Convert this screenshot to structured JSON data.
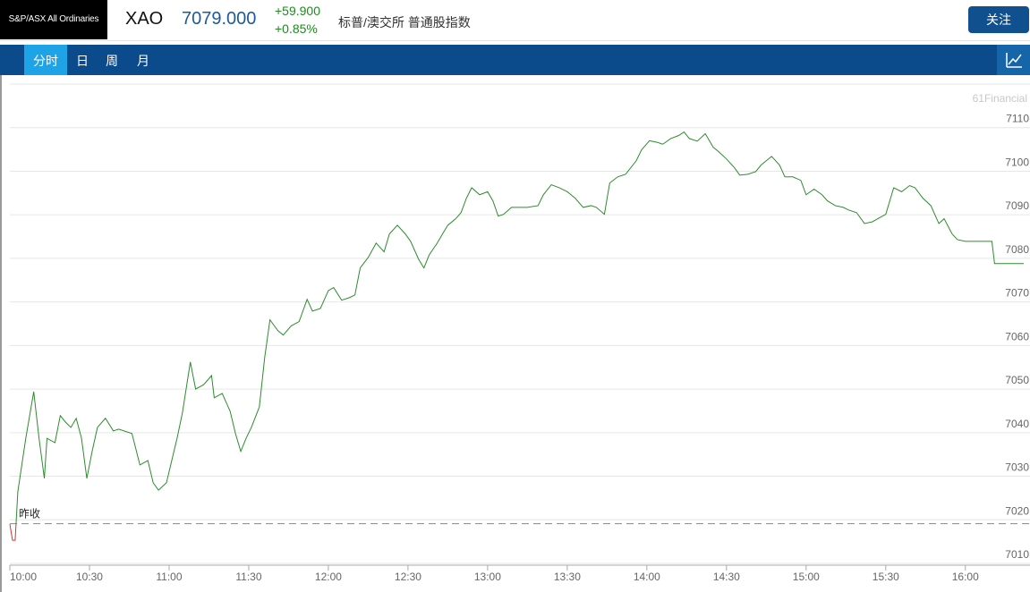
{
  "header": {
    "logo": "S&P/ASX All Ordinaries",
    "symbol": "XAO",
    "price": "7079.000",
    "change": "+59.900",
    "change_percent": "+0.85%",
    "name": "标普/澳交所 普通股指数",
    "button": "关注"
  },
  "tabs": [
    "分时",
    "日",
    "周",
    "月"
  ],
  "chart_data": {
    "type": "line",
    "watermark": "61Financial",
    "color": "#2e8b2e",
    "color_below": "#d9302c",
    "reference": {
      "label": "昨收",
      "value": 7019.1
    },
    "x": [
      "10:00",
      "10:01",
      "10:02",
      "10:03",
      "10:04",
      "10:06",
      "10:09",
      "10:11",
      "10:13",
      "10:14",
      "10:17",
      "10:19",
      "10:21",
      "10:23",
      "10:25",
      "10:27",
      "10:29",
      "10:31",
      "10:33",
      "10:36",
      "10:39",
      "10:41",
      "10:46",
      "10:49",
      "10:52",
      "10:54",
      "10:56",
      "10:59",
      "11:01",
      "11:03",
      "11:05",
      "11:08",
      "11:10",
      "11:13",
      "11:16",
      "11:17",
      "11:20",
      "11:23",
      "11:25",
      "11:27",
      "11:29",
      "11:31",
      "11:34",
      "11:36",
      "11:38",
      "11:41",
      "11:43",
      "11:46",
      "11:49",
      "11:52",
      "11:54",
      "11:57",
      "12:00",
      "12:02",
      "12:05",
      "12:08",
      "12:10",
      "12:12",
      "12:15",
      "12:18",
      "12:21",
      "12:23",
      "12:26",
      "12:29",
      "12:31",
      "12:34",
      "12:36",
      "12:38",
      "12:41",
      "12:43",
      "12:45",
      "12:48",
      "12:50",
      "12:52",
      "12:54",
      "12:57",
      "13:00",
      "13:02",
      "13:04",
      "13:06",
      "13:09",
      "13:12",
      "13:15",
      "13:19",
      "13:21",
      "13:24",
      "13:27",
      "13:30",
      "13:33",
      "13:36",
      "13:39",
      "13:41",
      "13:44",
      "13:46",
      "13:49",
      "13:52",
      "13:56",
      "13:58",
      "14:01",
      "14:04",
      "14:06",
      "14:09",
      "14:12",
      "14:14",
      "14:16",
      "14:19",
      "14:22",
      "14:25",
      "14:27",
      "14:30",
      "14:33",
      "14:35",
      "14:38",
      "14:41",
      "14:43",
      "14:47",
      "14:50",
      "14:52",
      "14:55",
      "14:58",
      "15:00",
      "15:03",
      "15:06",
      "15:08",
      "15:11",
      "15:14",
      "15:16",
      "15:19",
      "15:22",
      "15:25",
      "15:27",
      "15:30",
      "15:33",
      "15:36",
      "15:39",
      "15:41",
      "15:44",
      "15:47",
      "15:50",
      "15:52",
      "15:55",
      "15:57",
      "16:00",
      "16:10",
      "16:11",
      "16:22"
    ],
    "values": [
      7019.0,
      7015.3,
      7015.3,
      7026.4,
      7030.5,
      7038.7,
      7049.4,
      7038.7,
      7029.5,
      7038.7,
      7037.7,
      7043.9,
      7042.4,
      7041.2,
      7043.3,
      7038.7,
      7029.5,
      7035.7,
      7041.2,
      7043.3,
      7040.4,
      7040.8,
      7039.8,
      7032.6,
      7033.6,
      7028.5,
      7026.8,
      7028.5,
      7033.6,
      7038.7,
      7044.5,
      7056.2,
      7050.0,
      7051.0,
      7053.1,
      7048.0,
      7049.0,
      7044.9,
      7039.8,
      7035.7,
      7038.7,
      7041.2,
      7045.9,
      7057.2,
      7065.9,
      7063.4,
      7062.4,
      7064.5,
      7065.5,
      7070.6,
      7067.9,
      7068.5,
      7072.6,
      7073.3,
      7070.4,
      7071.0,
      7071.6,
      7077.8,
      7080.2,
      7083.5,
      7081.5,
      7085.6,
      7087.6,
      7085.6,
      7083.9,
      7079.8,
      7077.8,
      7080.8,
      7083.5,
      7085.6,
      7087.6,
      7089.1,
      7090.5,
      7093.8,
      7096.2,
      7094.6,
      7095.3,
      7093.2,
      7089.7,
      7090.1,
      7091.7,
      7091.7,
      7091.7,
      7092.1,
      7094.6,
      7096.9,
      7096.2,
      7095.3,
      7093.8,
      7091.7,
      7092.1,
      7091.7,
      7090.1,
      7097.3,
      7098.7,
      7099.3,
      7102.4,
      7104.9,
      7107.0,
      7106.6,
      7106.2,
      7107.5,
      7108.2,
      7109.0,
      7107.5,
      7106.9,
      7108.6,
      7105.5,
      7104.5,
      7102.8,
      7100.8,
      7099.1,
      7099.3,
      7099.9,
      7101.4,
      7103.4,
      7101.4,
      7098.7,
      7098.7,
      7097.9,
      7094.6,
      7095.9,
      7094.6,
      7093.2,
      7092.1,
      7091.7,
      7091.1,
      7090.5,
      7088.0,
      7088.4,
      7089.1,
      7090.1,
      7096.2,
      7095.3,
      7096.7,
      7096.2,
      7093.8,
      7092.1,
      7088.0,
      7089.1,
      7085.6,
      7084.3,
      7083.9,
      7083.9,
      7078.8,
      7078.8
    ],
    "xlim": [
      "10:00",
      "16:23"
    ],
    "xticks": [
      "10:00",
      "10:30",
      "11:00",
      "11:30",
      "12:00",
      "12:30",
      "13:00",
      "13:30",
      "14:00",
      "14:30",
      "15:00",
      "15:30",
      "16:00"
    ],
    "ylim": [
      7010,
      7120
    ],
    "yticks": [
      7010,
      7020,
      7030,
      7040,
      7050,
      7060,
      7070,
      7080,
      7090,
      7100,
      7110
    ],
    "grid": true
  }
}
